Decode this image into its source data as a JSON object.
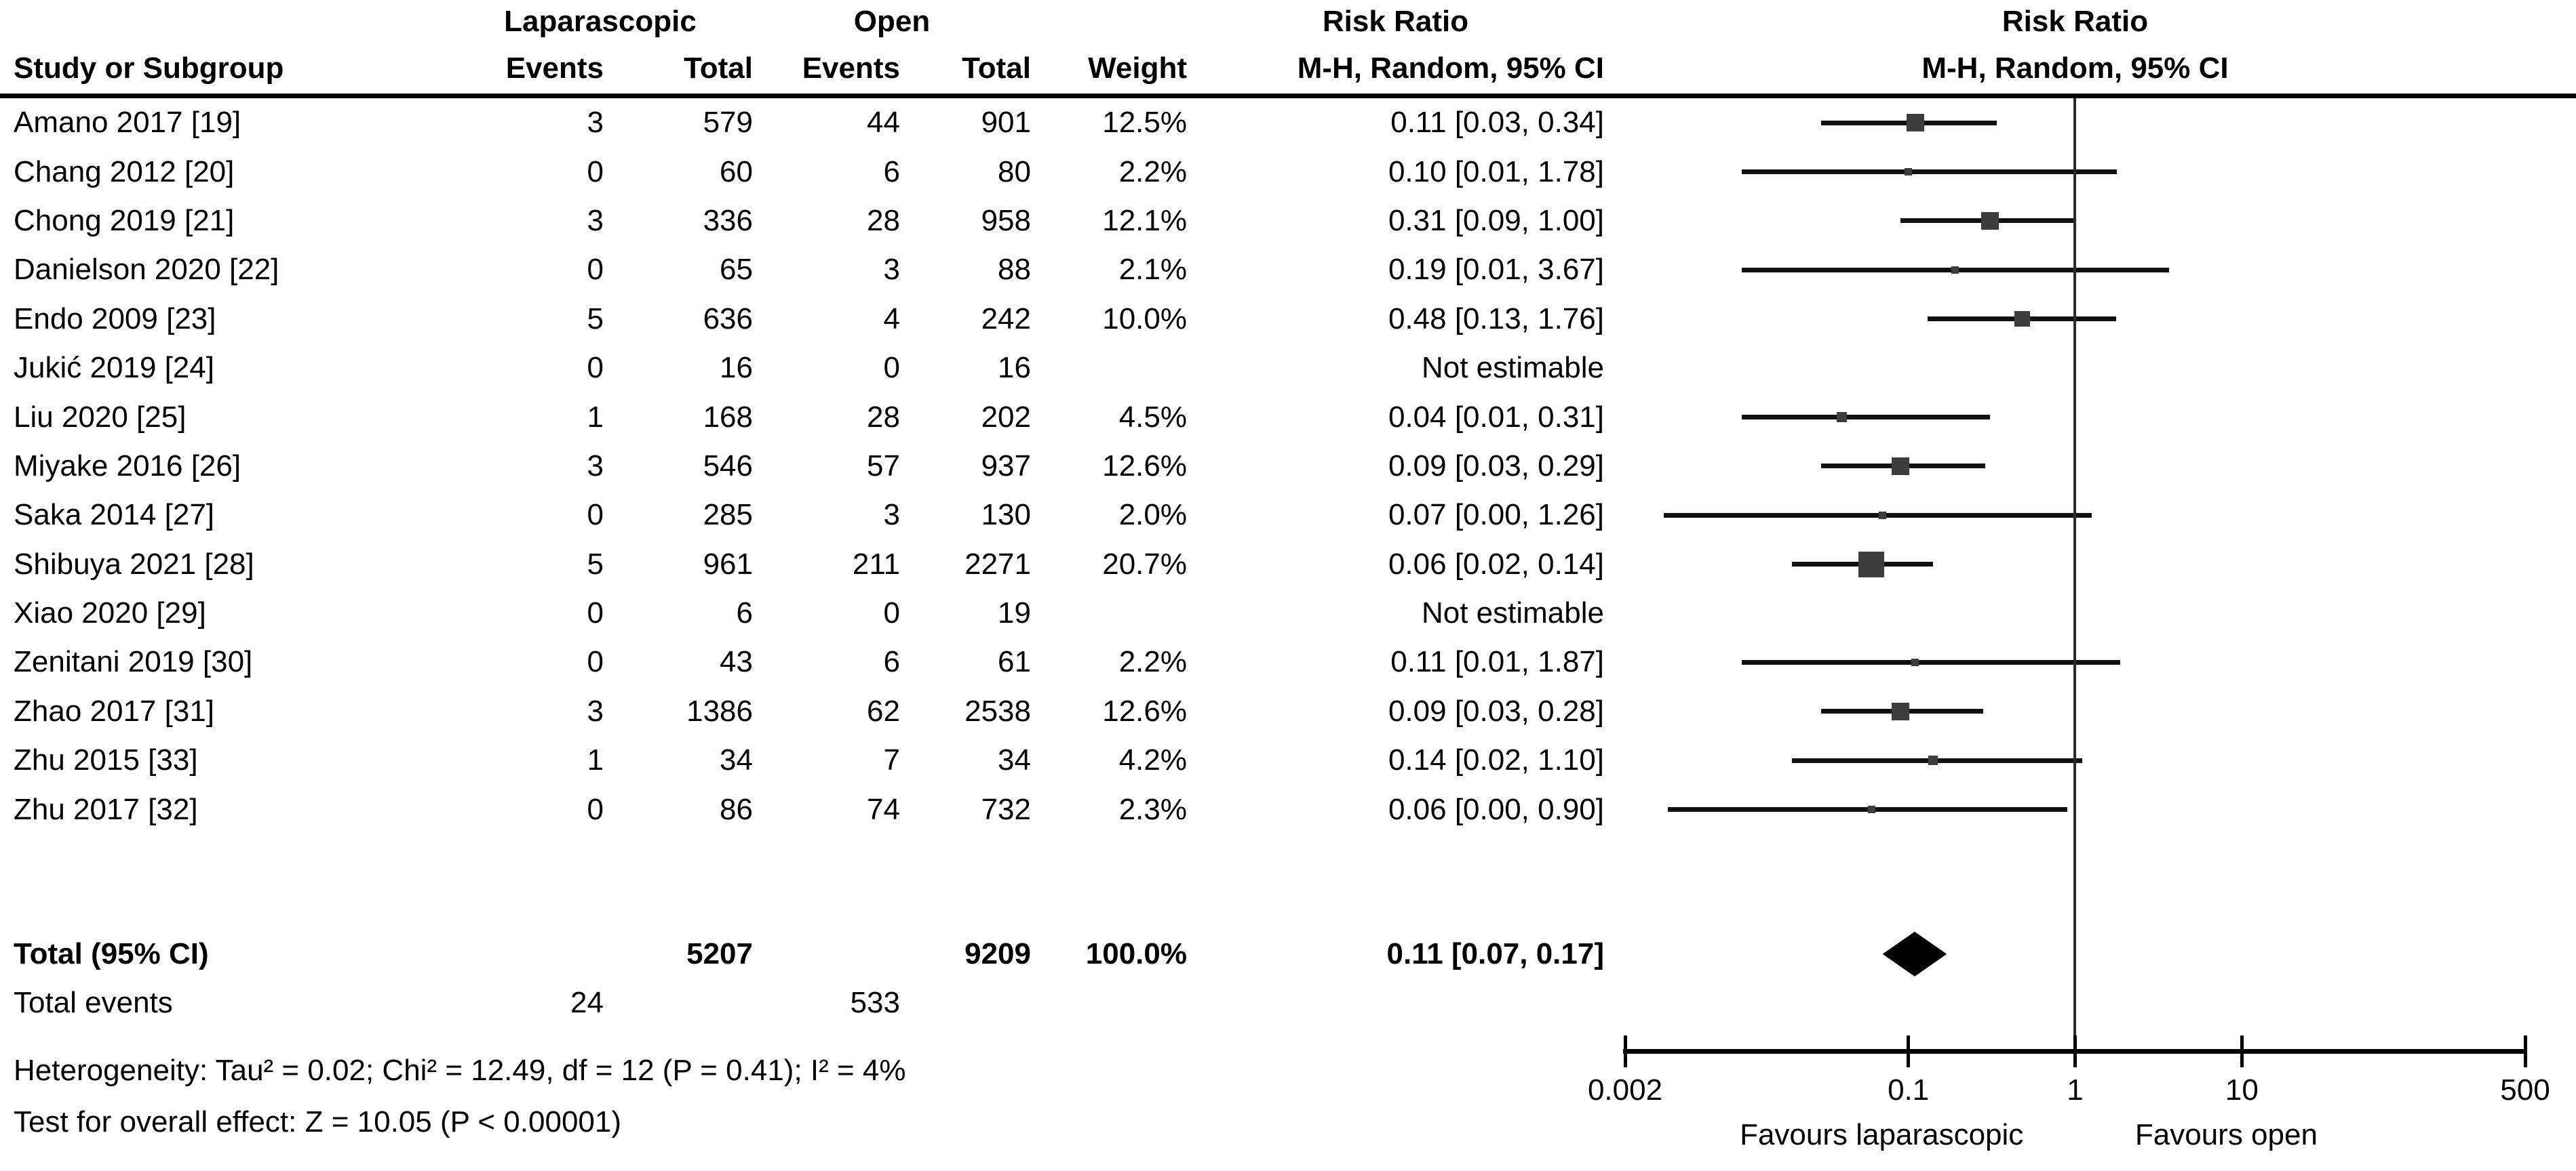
{
  "chart_data": {
    "type": "forest",
    "title": "Risk Ratio",
    "effect_label": "Risk Ratio",
    "method_label": "M-H, Random, 95% CI",
    "columns": {
      "group_lap": "Laparascopic",
      "group_open": "Open",
      "study": "Study or Subgroup",
      "events": "Events",
      "total": "Total",
      "weight": "Weight"
    },
    "studies": [
      {
        "name": "Amano 2017 [19]",
        "lap_events": "3",
        "lap_total": "579",
        "open_events": "44",
        "open_total": "901",
        "weight": "12.5%",
        "w": 12.5,
        "rr_text": "0.11 [0.03, 0.34]",
        "rr": 0.11,
        "low": 0.03,
        "high": 0.34
      },
      {
        "name": "Chang 2012 [20]",
        "lap_events": "0",
        "lap_total": "60",
        "open_events": "6",
        "open_total": "80",
        "weight": "2.2%",
        "w": 2.2,
        "rr_text": "0.10 [0.01, 1.78]",
        "rr": 0.1,
        "low": 0.01,
        "high": 1.78
      },
      {
        "name": "Chong 2019 [21]",
        "lap_events": "3",
        "lap_total": "336",
        "open_events": "28",
        "open_total": "958",
        "weight": "12.1%",
        "w": 12.1,
        "rr_text": "0.31 [0.09, 1.00]",
        "rr": 0.31,
        "low": 0.09,
        "high": 1.0
      },
      {
        "name": "Danielson 2020 [22]",
        "lap_events": "0",
        "lap_total": "65",
        "open_events": "3",
        "open_total": "88",
        "weight": "2.1%",
        "w": 2.1,
        "rr_text": "0.19 [0.01, 3.67]",
        "rr": 0.19,
        "low": 0.01,
        "high": 3.67
      },
      {
        "name": "Endo 2009 [23]",
        "lap_events": "5",
        "lap_total": "636",
        "open_events": "4",
        "open_total": "242",
        "weight": "10.0%",
        "w": 10.0,
        "rr_text": "0.48 [0.13, 1.76]",
        "rr": 0.48,
        "low": 0.13,
        "high": 1.76
      },
      {
        "name": "Jukić 2019 [24]",
        "lap_events": "0",
        "lap_total": "16",
        "open_events": "0",
        "open_total": "16",
        "weight": "",
        "w": null,
        "rr_text": "Not estimable",
        "rr": null,
        "low": null,
        "high": null
      },
      {
        "name": "Liu 2020 [25]",
        "lap_events": "1",
        "lap_total": "168",
        "open_events": "28",
        "open_total": "202",
        "weight": "4.5%",
        "w": 4.5,
        "rr_text": "0.04 [0.01, 0.31]",
        "rr": 0.04,
        "low": 0.01,
        "high": 0.31
      },
      {
        "name": "Miyake 2016 [26]",
        "lap_events": "3",
        "lap_total": "546",
        "open_events": "57",
        "open_total": "937",
        "weight": "12.6%",
        "w": 12.6,
        "rr_text": "0.09 [0.03, 0.29]",
        "rr": 0.09,
        "low": 0.03,
        "high": 0.29
      },
      {
        "name": "Saka 2014 [27]",
        "lap_events": "0",
        "lap_total": "285",
        "open_events": "3",
        "open_total": "130",
        "weight": "2.0%",
        "w": 2.0,
        "rr_text": "0.07 [0.00, 1.26]",
        "rr": 0.07,
        "low": 0.0,
        "plot_low": 0.0034,
        "high": 1.26
      },
      {
        "name": "Shibuya 2021 [28]",
        "lap_events": "5",
        "lap_total": "961",
        "open_events": "211",
        "open_total": "2271",
        "weight": "20.7%",
        "w": 20.7,
        "rr_text": "0.06 [0.02, 0.14]",
        "rr": 0.06,
        "low": 0.02,
        "high": 0.14
      },
      {
        "name": "Xiao 2020 [29]",
        "lap_events": "0",
        "lap_total": "6",
        "open_events": "0",
        "open_total": "19",
        "weight": "",
        "w": null,
        "rr_text": "Not estimable",
        "rr": null,
        "low": null,
        "high": null
      },
      {
        "name": "Zenitani 2019 [30]",
        "lap_events": "0",
        "lap_total": "43",
        "open_events": "6",
        "open_total": "61",
        "weight": "2.2%",
        "w": 2.2,
        "rr_text": "0.11 [0.01, 1.87]",
        "rr": 0.11,
        "low": 0.01,
        "high": 1.87
      },
      {
        "name": "Zhao 2017 [31]",
        "lap_events": "3",
        "lap_total": "1386",
        "open_events": "62",
        "open_total": "2538",
        "weight": "12.6%",
        "w": 12.6,
        "rr_text": "0.09 [0.03, 0.28]",
        "rr": 0.09,
        "low": 0.03,
        "high": 0.28
      },
      {
        "name": "Zhu 2015 [33]",
        "lap_events": "1",
        "lap_total": "34",
        "open_events": "7",
        "open_total": "34",
        "weight": "4.2%",
        "w": 4.2,
        "rr_text": "0.14 [0.02, 1.10]",
        "rr": 0.14,
        "low": 0.02,
        "high": 1.1
      },
      {
        "name": "Zhu 2017 [32]",
        "lap_events": "0",
        "lap_total": "86",
        "open_events": "74",
        "open_total": "732",
        "weight": "2.3%",
        "w": 2.3,
        "rr_text": "0.06 [0.00, 0.90]",
        "rr": 0.06,
        "low": 0.0,
        "plot_low": 0.0036,
        "high": 0.9
      }
    ],
    "total": {
      "label": "Total (95% CI)",
      "lap_total": "5207",
      "open_total": "9209",
      "weight": "100.0%",
      "rr_text": "0.11 [0.07, 0.17]",
      "rr": 0.11,
      "low": 0.07,
      "high": 0.17
    },
    "total_events": {
      "label": "Total events",
      "lap": "24",
      "open": "533"
    },
    "heterogeneity": "Heterogeneity: Tau² = 0.02; Chi² = 12.49, df = 12 (P = 0.41); I² = 4%",
    "overall_effect": "Test for overall effect: Z = 10.05 (P < 0.00001)",
    "axis": {
      "scale": "log",
      "min": 0.002,
      "max": 500,
      "ticks": [
        0.002,
        0.1,
        1,
        10,
        500
      ],
      "tick_labels": [
        "0.002",
        "0.1",
        "1",
        "10",
        "500"
      ],
      "favours_left": "Favours laparascopic",
      "favours_right": "Favours open"
    },
    "colors": {
      "square": "#3d3d3d",
      "ci_line": "#111111",
      "diamond": "#000000",
      "axis": "#000000"
    }
  }
}
